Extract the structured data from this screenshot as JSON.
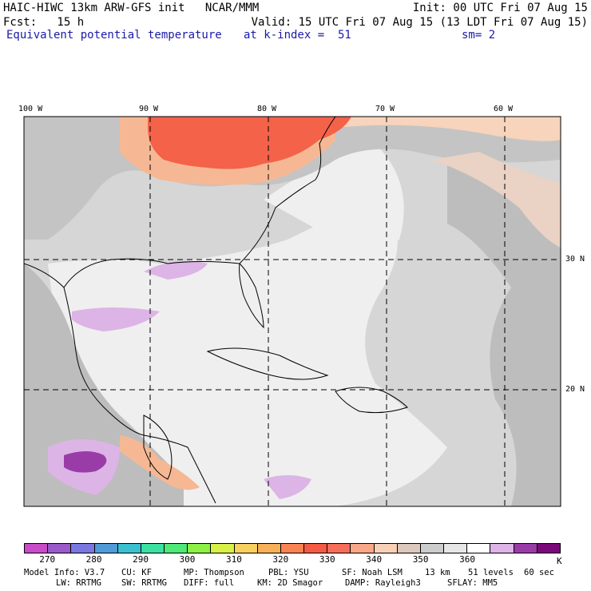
{
  "header": {
    "line1_left": "HAIC-HIWC 13km ARW-GFS init   NCAR/MMM",
    "line1_right": "Init: 00 UTC Fri 07 Aug 15",
    "line2_left": "Fcst:   15 h",
    "line2_right": "Valid: 15 UTC Fri 07 Aug 15 (13 LDT Fri 07 Aug 15)",
    "field_name": "Equivalent potential temperature",
    "level": "at k-index =  51",
    "smoothing": "sm= 2"
  },
  "map": {
    "lon_labels": [
      "100 W",
      "90 W",
      "80 W",
      "70 W",
      "60 W"
    ],
    "lat_labels": [
      "30 N",
      "20 N"
    ],
    "colors": {
      "land_gray": "#b8b8b8",
      "light_gray": "#d6d6d6",
      "pale": "#efefef",
      "lavender": "#dcb4e6",
      "purple": "#9a3ca8",
      "orange_light": "#f6b894",
      "red": "#f4624a",
      "peach": "#f8d4bc"
    }
  },
  "colorbar": {
    "colors": [
      "#c84cc8",
      "#9a5ac8",
      "#7a78e0",
      "#509ad8",
      "#3cc0d0",
      "#3ce0a0",
      "#50e878",
      "#8cf048",
      "#d8f048",
      "#f8d060",
      "#f8b05a",
      "#f88454",
      "#f45a44",
      "#f46e58",
      "#f8a888",
      "#f8d0b8",
      "#dcc8bc",
      "#cccccc",
      "#e6e6e6",
      "#ffffff",
      "#dcb4e6",
      "#9a3ca8",
      "#7a0a7a"
    ],
    "tick_labels": [
      "270",
      "280",
      "290",
      "300",
      "310",
      "320",
      "330",
      "340",
      "350",
      "360"
    ],
    "unit": "K"
  },
  "footer": {
    "line1": [
      "Model Info: V3.7",
      "CU: KF",
      "MP: Thompson",
      "PBL: YSU",
      "SF: Noah LSM",
      "13 km",
      "51 levels",
      "60 sec"
    ],
    "line2": [
      "LW: RRTMG",
      "SW: RRTMG",
      "DIFF: full",
      "KM: 2D Smagor",
      "DAMP: Rayleigh3",
      "SFLAY: MM5"
    ]
  }
}
